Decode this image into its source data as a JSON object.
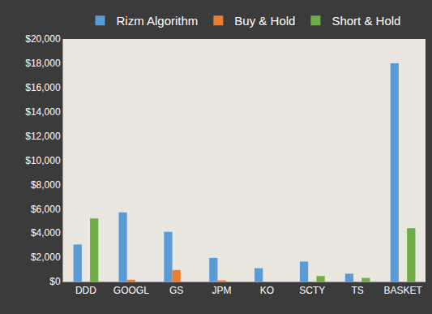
{
  "chart_data": {
    "type": "bar",
    "categories": [
      "DDD",
      "GOOGL",
      "GS",
      "JPM",
      "KO",
      "SCTY",
      "TS",
      "BASKET"
    ],
    "series": [
      {
        "name": "Rizm Algorithm",
        "color": "#5b9bd5",
        "values": [
          3050,
          5700,
          4100,
          1950,
          1100,
          1650,
          650,
          18000
        ]
      },
      {
        "name": "Buy & Hold",
        "color": "#ed7d31",
        "values": [
          0,
          150,
          950,
          100,
          0,
          0,
          0,
          0
        ]
      },
      {
        "name": "Short & Hold",
        "color": "#70ad47",
        "values": [
          5200,
          0,
          0,
          0,
          0,
          450,
          300,
          4400
        ]
      }
    ],
    "ylim": [
      0,
      20000
    ],
    "yticks": [
      {
        "value": 0,
        "label": "$0"
      },
      {
        "value": 2000,
        "label": "$2,000"
      },
      {
        "value": 4000,
        "label": "$4,000"
      },
      {
        "value": 6000,
        "label": "$6,000"
      },
      {
        "value": 8000,
        "label": "$8,000"
      },
      {
        "value": 10000,
        "label": "$10,000"
      },
      {
        "value": 12000,
        "label": "$12,000"
      },
      {
        "value": 14000,
        "label": "$14,000"
      },
      {
        "value": 16000,
        "label": "$16,000"
      },
      {
        "value": 18000,
        "label": "$18,000"
      },
      {
        "value": 20000,
        "label": "$20,000"
      }
    ],
    "grid": false,
    "legend": "top"
  }
}
